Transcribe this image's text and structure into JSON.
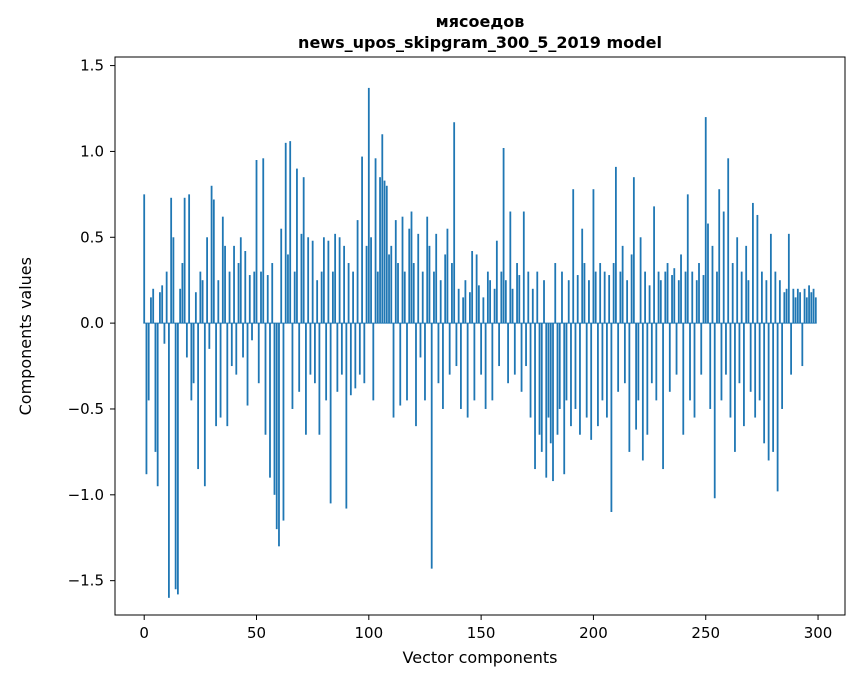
{
  "figure": {
    "title_line1": "мясоедов",
    "title_line2": "news_upos_skipgram_300_5_2019 model",
    "xlabel": "Vector components",
    "ylabel": "Components values"
  },
  "chart_data": {
    "type": "bar",
    "title": "мясоедов\nnews_upos_skipgram_300_5_2019 model",
    "xlabel": "Vector components",
    "ylabel": "Components values",
    "legend": null,
    "grid": false,
    "bar_color": "#1f77b4",
    "n_components": 300,
    "x_ticks": [
      0,
      50,
      100,
      150,
      200,
      250,
      300
    ],
    "y_ticks": [
      -1.5,
      -1.0,
      -0.5,
      0.0,
      0.5,
      1.0,
      1.5
    ],
    "xlim": [
      -13,
      312
    ],
    "ylim": [
      -1.7,
      1.55
    ],
    "values": [
      0.75,
      -0.88,
      -0.45,
      0.15,
      0.2,
      -0.75,
      -0.95,
      0.18,
      0.22,
      -0.12,
      0.3,
      -1.6,
      0.73,
      0.5,
      -1.55,
      -1.58,
      0.2,
      0.35,
      0.73,
      -0.2,
      0.75,
      -0.45,
      -0.35,
      0.18,
      -0.85,
      0.3,
      0.25,
      -0.95,
      0.5,
      -0.15,
      0.8,
      0.72,
      -0.6,
      0.25,
      -0.55,
      0.62,
      0.45,
      -0.6,
      0.3,
      -0.25,
      0.45,
      -0.3,
      0.35,
      0.5,
      -0.2,
      0.42,
      -0.48,
      0.28,
      -0.1,
      0.3,
      0.95,
      -0.35,
      0.3,
      0.96,
      -0.65,
      0.28,
      -0.9,
      0.35,
      -1.0,
      -1.2,
      -1.3,
      0.55,
      -1.15,
      1.05,
      0.4,
      1.06,
      -0.5,
      0.3,
      0.9,
      -0.4,
      0.52,
      0.85,
      -0.65,
      0.5,
      -0.3,
      0.48,
      -0.35,
      0.25,
      -0.65,
      0.3,
      0.5,
      -0.45,
      0.48,
      -1.05,
      0.3,
      0.52,
      -0.4,
      0.5,
      -0.3,
      0.45,
      -1.08,
      0.35,
      -0.42,
      0.3,
      -0.38,
      0.6,
      -0.3,
      0.97,
      -0.35,
      0.45,
      1.37,
      0.5,
      -0.45,
      0.96,
      0.3,
      0.85,
      1.1,
      0.83,
      0.8,
      0.4,
      0.45,
      -0.55,
      0.6,
      0.35,
      -0.48,
      0.62,
      0.3,
      -0.45,
      0.55,
      0.65,
      0.35,
      -0.6,
      0.52,
      -0.2,
      0.3,
      -0.45,
      0.62,
      0.45,
      -1.43,
      0.3,
      0.52,
      -0.35,
      0.25,
      -0.5,
      0.4,
      0.55,
      -0.3,
      0.35,
      1.17,
      -0.25,
      0.2,
      -0.5,
      0.15,
      0.25,
      -0.55,
      0.18,
      0.42,
      -0.45,
      0.4,
      0.22,
      -0.3,
      0.15,
      -0.5,
      0.3,
      0.25,
      -0.45,
      0.2,
      0.48,
      -0.25,
      0.3,
      1.02,
      0.25,
      -0.35,
      0.65,
      0.2,
      -0.3,
      0.35,
      0.28,
      -0.4,
      0.65,
      -0.25,
      0.3,
      -0.55,
      0.2,
      -0.85,
      0.3,
      -0.65,
      -0.75,
      0.25,
      -0.9,
      -0.55,
      -0.7,
      -0.92,
      0.35,
      -0.65,
      -0.5,
      0.3,
      -0.88,
      -0.45,
      0.25,
      -0.6,
      0.78,
      -0.5,
      0.28,
      -0.65,
      0.55,
      0.35,
      -0.55,
      0.25,
      -0.68,
      0.78,
      0.3,
      -0.6,
      0.35,
      -0.45,
      0.3,
      -0.55,
      0.28,
      -1.1,
      0.35,
      0.91,
      -0.4,
      0.3,
      0.45,
      -0.35,
      0.25,
      -0.75,
      0.4,
      0.85,
      -0.62,
      -0.45,
      0.5,
      -0.8,
      0.3,
      -0.65,
      0.22,
      -0.35,
      0.68,
      -0.45,
      0.3,
      0.25,
      -0.85,
      0.3,
      0.35,
      -0.4,
      0.28,
      0.32,
      -0.3,
      0.25,
      0.4,
      -0.65,
      0.3,
      0.75,
      -0.45,
      0.3,
      -0.55,
      0.25,
      0.35,
      -0.3,
      0.28,
      1.2,
      0.58,
      -0.5,
      0.45,
      -1.02,
      0.3,
      0.78,
      -0.45,
      0.65,
      -0.3,
      0.96,
      -0.55,
      0.35,
      -0.75,
      0.5,
      -0.35,
      0.3,
      -0.6,
      0.45,
      0.25,
      -0.4,
      0.7,
      -0.55,
      0.63,
      -0.45,
      0.3,
      -0.7,
      0.25,
      -0.8,
      0.52,
      -0.75,
      0.3,
      -0.98,
      0.25,
      -0.5,
      0.18,
      0.2,
      0.52,
      -0.3,
      0.2,
      0.15,
      0.2,
      0.18,
      -0.25,
      0.2,
      0.15,
      0.22,
      0.18,
      0.2,
      0.15
    ]
  }
}
